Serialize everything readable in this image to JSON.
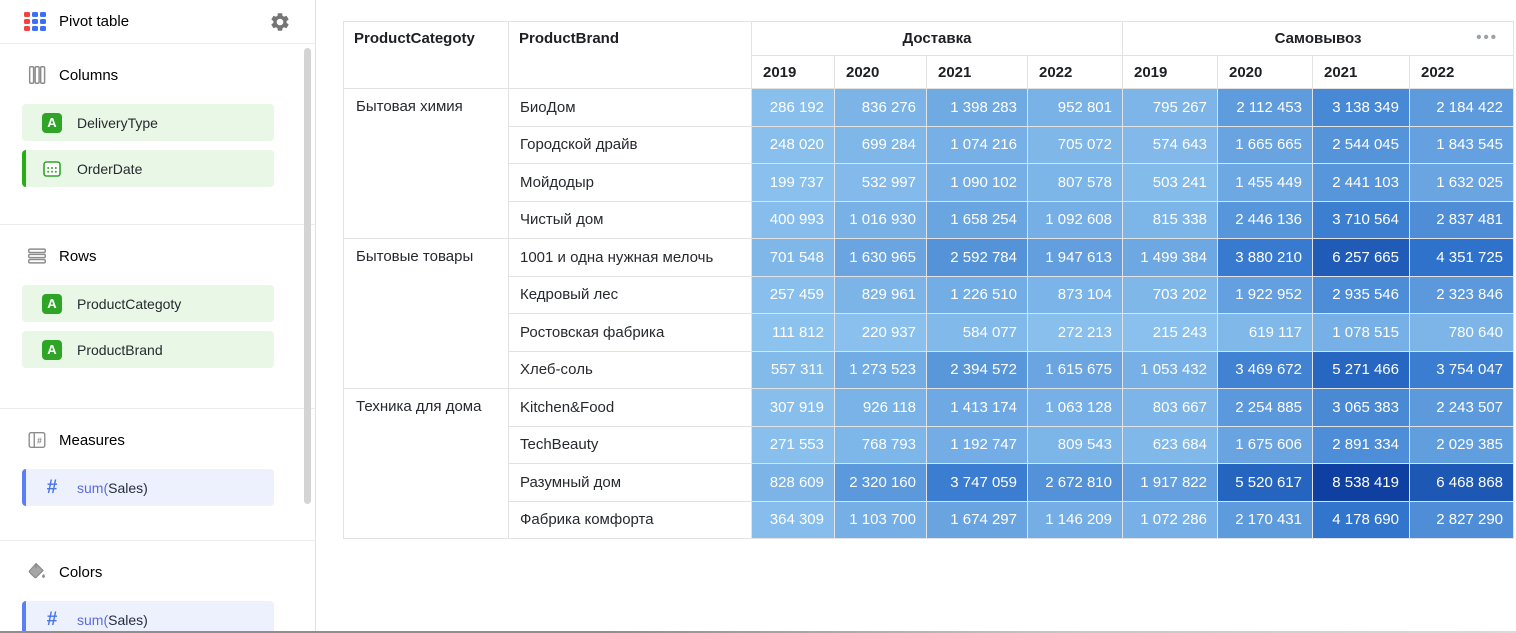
{
  "app": {
    "title": "Pivot table"
  },
  "sidebar": {
    "sections": [
      {
        "label": "Columns",
        "items": [
          {
            "label": "DeliveryType",
            "type": "dimension",
            "icon": "text-field-icon"
          },
          {
            "label": "OrderDate",
            "type": "dimension",
            "icon": "calendar-icon",
            "active": true
          }
        ]
      },
      {
        "label": "Rows",
        "items": [
          {
            "label": "ProductCategoty",
            "type": "dimension",
            "icon": "text-field-icon"
          },
          {
            "label": "ProductBrand",
            "type": "dimension",
            "icon": "text-field-icon"
          }
        ]
      },
      {
        "label": "Measures",
        "items": [
          {
            "prefix": "sum(",
            "field": "Sales",
            "suffix": ")",
            "type": "measure",
            "icon": "hash-icon"
          }
        ]
      },
      {
        "label": "Colors",
        "items": [
          {
            "prefix": "sum(",
            "field": "Sales",
            "suffix": ")",
            "type": "measure",
            "icon": "hash-icon"
          }
        ]
      }
    ]
  },
  "menu": {
    "more_label": "•••"
  },
  "colors": {
    "logo_red": "#f5413e",
    "logo_blue": "#3b6ff5",
    "dimension_green": "#2fa527",
    "active_bar_green": "#27ae12",
    "measure_blue_bar": "#5b7ff2",
    "measure_hash_blue": "#4a74e8",
    "dimension_pill_bg": "#e9f7e7",
    "measure_pill_bg": "#edf1fd"
  },
  "chart_data": {
    "type": "table",
    "row_headers": [
      "ProductCategoty",
      "ProductBrand"
    ],
    "column_groups": [
      {
        "label": "Доставка",
        "years": [
          "2019",
          "2020",
          "2021",
          "2022"
        ]
      },
      {
        "label": "Самовывоз",
        "years": [
          "2019",
          "2020",
          "2021",
          "2022"
        ]
      }
    ],
    "groups": [
      {
        "category": "Бытовая химия",
        "rows": [
          {
            "brand": "БиоДом",
            "values": [
              286192,
              836276,
              1398283,
              952801,
              795267,
              2112453,
              3138349,
              2184422
            ]
          },
          {
            "brand": "Городской драйв",
            "values": [
              248020,
              699284,
              1074216,
              705072,
              574643,
              1665665,
              2544045,
              1843545
            ]
          },
          {
            "brand": "Мойдодыр",
            "values": [
              199737,
              532997,
              1090102,
              807578,
              503241,
              1455449,
              2441103,
              1632025
            ]
          },
          {
            "brand": "Чистый дом",
            "values": [
              400993,
              1016930,
              1658254,
              1092608,
              815338,
              2446136,
              3710564,
              2837481
            ]
          }
        ]
      },
      {
        "category": "Бытовые товары",
        "rows": [
          {
            "brand": "1001 и одна нужная мелочь",
            "values": [
              701548,
              1630965,
              2592784,
              1947613,
              1499384,
              3880210,
              6257665,
              4351725
            ]
          },
          {
            "brand": "Кедровый лес",
            "values": [
              257459,
              829961,
              1226510,
              873104,
              703202,
              1922952,
              2935546,
              2323846
            ]
          },
          {
            "brand": "Ростовская фабрика",
            "values": [
              111812,
              220937,
              584077,
              272213,
              215243,
              619117,
              1078515,
              780640
            ]
          },
          {
            "brand": "Хлеб-соль",
            "values": [
              557311,
              1273523,
              2394572,
              1615675,
              1053432,
              3469672,
              5271466,
              3754047
            ]
          }
        ]
      },
      {
        "category": "Техника для дома",
        "rows": [
          {
            "brand": "Kitchen&Food",
            "values": [
              307919,
              926118,
              1413174,
              1063128,
              803667,
              2254885,
              3065383,
              2243507
            ]
          },
          {
            "brand": "TechBeauty",
            "values": [
              271553,
              768793,
              1192747,
              809543,
              623684,
              1675606,
              2891334,
              2029385
            ]
          },
          {
            "brand": "Разумный дом",
            "values": [
              828609,
              2320160,
              3747059,
              2672810,
              1917822,
              5520617,
              8538419,
              6468868
            ]
          },
          {
            "brand": "Фабрика комфорта",
            "values": [
              364309,
              1103700,
              1674297,
              1146209,
              1072286,
              2170431,
              4178690,
              2827290
            ]
          }
        ]
      }
    ],
    "color_scale": {
      "stops": [
        "#8cc2ee",
        "#2e72cb",
        "#0f3fa0"
      ],
      "mapped_to": "sum(Sales)"
    },
    "value_text_color": "#ffffff",
    "number_format": "space-grouped"
  }
}
